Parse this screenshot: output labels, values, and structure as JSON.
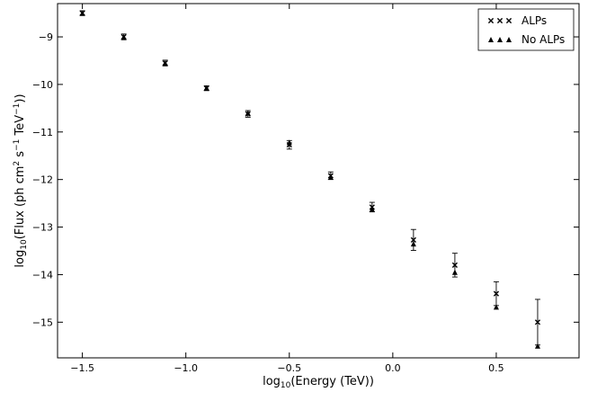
{
  "chart_data": {
    "type": "scatter",
    "title": "",
    "xlabel_base": "log",
    "xlabel_sub": "10",
    "xlabel_rest": "(Energy (TeV))",
    "ylabel_base": "log",
    "ylabel_sub": "10",
    "ylabel_rest": "(Flux (ph cm",
    "ylabel_sup1": "2",
    "ylabel_mid": " s",
    "ylabel_sup2": "−1",
    "ylabel_unit": " TeV",
    "ylabel_sup3": "−1",
    "ylabel_end": "))",
    "xlim": [
      -1.62,
      0.9
    ],
    "ylim": [
      -15.75,
      -8.3
    ],
    "xticks": [
      -1.5,
      -1.0,
      -0.5,
      0.0,
      0.5
    ],
    "xtick_labels": [
      "−1.5",
      "−1.0",
      "−0.5",
      "0.0",
      "0.5"
    ],
    "yticks": [
      -9,
      -10,
      -11,
      -12,
      -13,
      -14,
      -15
    ],
    "ytick_labels": [
      "−9",
      "−10",
      "−11",
      "−12",
      "−13",
      "−14",
      "−15"
    ],
    "grid": false,
    "legend_position": "top-right",
    "series": [
      {
        "name": "ALPs",
        "marker": "x",
        "x": [
          -1.5,
          -1.3,
          -1.1,
          -0.9,
          -0.7,
          -0.5,
          -0.3,
          -0.1,
          0.1,
          0.3,
          0.5,
          0.7
        ],
        "y": [
          -8.5,
          -9.0,
          -9.55,
          -10.08,
          -10.62,
          -11.27,
          -11.92,
          -12.58,
          -13.27,
          -13.8,
          -14.4,
          -15.0
        ],
        "yerr": [
          0.05,
          0.06,
          0.06,
          0.05,
          0.07,
          0.09,
          0.08,
          0.1,
          0.22,
          0.25,
          0.25,
          0.48
        ]
      },
      {
        "name": "No ALPs",
        "marker": "triangle",
        "x": [
          -1.5,
          -1.3,
          -1.1,
          -0.9,
          -0.7,
          -0.5,
          -0.3,
          -0.1,
          0.1,
          0.3,
          0.5,
          0.7
        ],
        "y": [
          -8.5,
          -9.0,
          -9.55,
          -10.07,
          -10.6,
          -11.22,
          -11.95,
          -12.62,
          -13.35,
          -13.95,
          -14.68,
          -15.5
        ]
      }
    ]
  }
}
